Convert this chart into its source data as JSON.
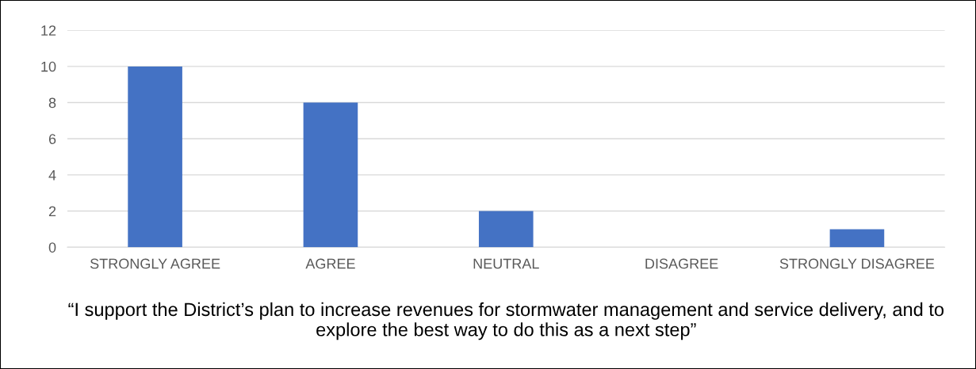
{
  "chart_data": {
    "type": "bar",
    "categories": [
      "STRONGLY AGREE",
      "AGREE",
      "NEUTRAL",
      "DISAGREE",
      "STRONGLY DISAGREE"
    ],
    "values": [
      10,
      8,
      2,
      0,
      1
    ],
    "color": "#4472c4",
    "ylim": [
      0,
      12
    ],
    "yticks": [
      0,
      2,
      4,
      6,
      8,
      10,
      12
    ],
    "grid": "y",
    "xlabel": "“I support the District’s plan to increase revenues for stormwater management and service delivery, and to explore the best way to do this as a next step”"
  }
}
